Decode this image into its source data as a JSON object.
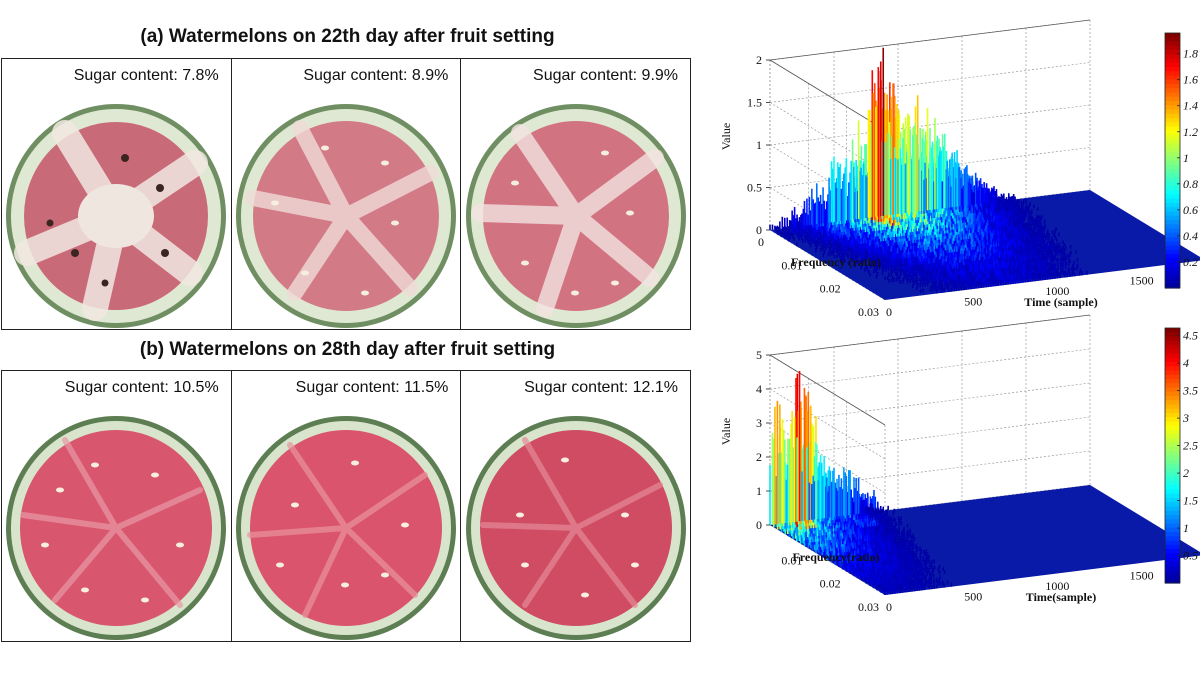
{
  "panel_a": {
    "title": "(a) Watermelons on 22th day after fruit setting",
    "sugar": [
      "Sugar content: 7.8%",
      "Sugar content: 8.9%",
      "Sugar content: 9.9%"
    ]
  },
  "panel_b": {
    "title": "(b) Watermelons on 28th day after fruit setting",
    "sugar": [
      "Sugar content: 10.5%",
      "Sugar content: 11.5%",
      "Sugar content: 12.1%"
    ]
  },
  "chart_data": [
    {
      "type": "surface3d",
      "zlabel": "Value",
      "xlabel": "Frequency (ratio)",
      "ylabel": "Time (sample)",
      "z_ticks": [
        "0",
        "0.5",
        "1",
        "1.5",
        "2"
      ],
      "freq_ticks": [
        "0",
        "0.01",
        "0.02",
        "0.03"
      ],
      "time_ticks": [
        "0",
        "500",
        "1000",
        "1500"
      ],
      "zlim": [
        0,
        2
      ],
      "colorbar_ticks": [
        "0.2",
        "0.4",
        "0.6",
        "0.8",
        "1",
        "1.2",
        "1.4",
        "1.6",
        "1.8"
      ],
      "peak_value": 1.9
    },
    {
      "type": "surface3d",
      "zlabel": "Value",
      "xlabel": "Frequency(ratio)",
      "ylabel": "Time(sample)",
      "z_ticks": [
        "0",
        "1",
        "2",
        "3",
        "4",
        "5"
      ],
      "freq_ticks": [
        "0.01",
        "0.02",
        "0.03"
      ],
      "time_ticks": [
        "0",
        "500",
        "1000",
        "1500"
      ],
      "zlim": [
        0,
        5
      ],
      "colorbar_ticks": [
        "0.5",
        "1",
        "1.5",
        "2",
        "2.5",
        "3",
        "3.5",
        "4",
        "4.5"
      ],
      "peak_value": 4.5
    }
  ],
  "colors": {
    "jet": [
      "#00008f",
      "#0000ff",
      "#0080ff",
      "#00ffff",
      "#80ff80",
      "#ffff00",
      "#ff8000",
      "#ff0000",
      "#800000"
    ]
  }
}
